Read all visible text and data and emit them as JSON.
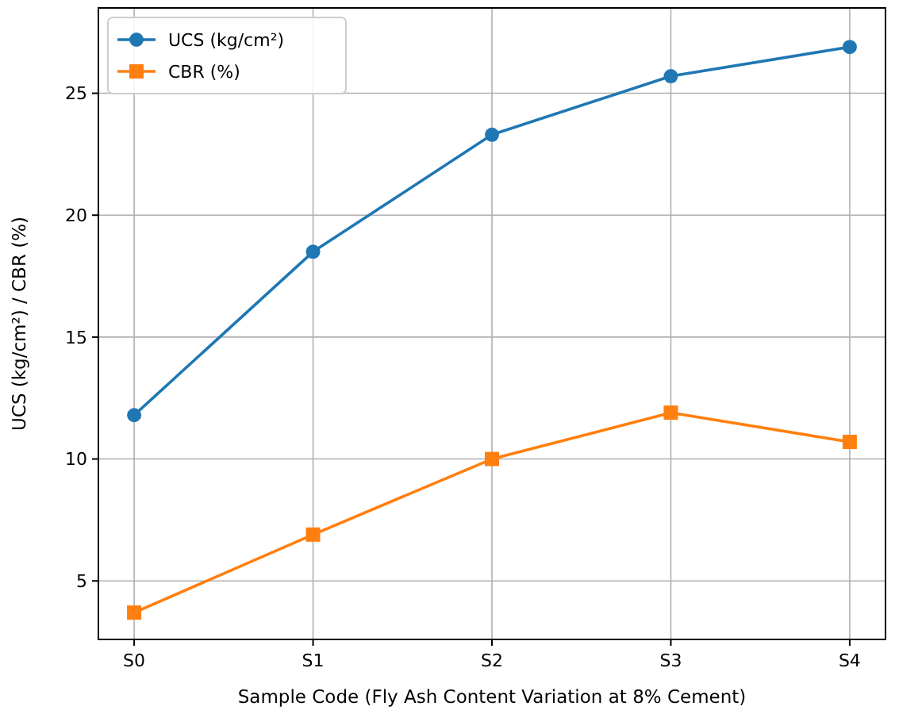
{
  "chart_data": {
    "type": "line",
    "xlabel": "Sample Code (Fly Ash Content Variation at 8% Cement)",
    "ylabel": "UCS (kg/cm²) / CBR (%)",
    "categories": [
      "S0",
      "S1",
      "S2",
      "S3",
      "S4"
    ],
    "series": [
      {
        "name": "UCS (kg/cm²)",
        "color": "#1f77b4",
        "marker": "circle",
        "values": [
          11.8,
          18.5,
          23.3,
          25.7,
          26.9
        ]
      },
      {
        "name": "CBR (%)",
        "color": "#ff7f0e",
        "marker": "square",
        "values": [
          3.7,
          6.9,
          10.0,
          11.9,
          10.7
        ]
      }
    ],
    "ylim": [
      2.6,
      28.5
    ],
    "yticks": [
      5,
      10,
      15,
      20,
      25
    ],
    "grid": true,
    "legend": "top left",
    "line_style": "solid"
  }
}
